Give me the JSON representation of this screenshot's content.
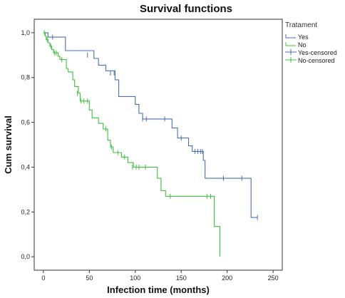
{
  "chart_data": {
    "type": "line",
    "title": "Survival functions",
    "xlabel": "Infection time (months)",
    "ylabel": "Cum survival",
    "xlim": [
      -10,
      260
    ],
    "ylim": [
      -0.06,
      1.06
    ],
    "x_ticks": [
      "0",
      "50",
      "100",
      "150",
      "200",
      "250"
    ],
    "x_tick_values": [
      0,
      50,
      100,
      150,
      200,
      250
    ],
    "y_ticks": [
      "0,0",
      "0,2",
      "0,4",
      "0,6",
      "0,8",
      "1,0"
    ],
    "y_tick_values": [
      0,
      0.2,
      0.4,
      0.6,
      0.8,
      1.0
    ],
    "grid": false,
    "legend": {
      "title": "Tratament",
      "placement": "top-right",
      "entries": [
        {
          "label": "Yes",
          "color": "#4a6fb3",
          "style": "line"
        },
        {
          "label": "No",
          "color": "#3fbf3f",
          "style": "line"
        },
        {
          "label": "Yes-censored",
          "color": "#4a6fb3",
          "style": "censor"
        },
        {
          "label": "No-censored",
          "color": "#3fbf3f",
          "style": "censor"
        }
      ]
    },
    "series": [
      {
        "name": "Yes",
        "color": "#4a6fb3",
        "steps": [
          [
            0,
            1.0
          ],
          [
            5,
            1.0
          ],
          [
            5,
            0.98
          ],
          [
            12,
            0.98
          ],
          [
            12,
            0.98
          ],
          [
            24,
            0.98
          ],
          [
            24,
            0.92
          ],
          [
            55,
            0.92
          ],
          [
            55,
            0.885
          ],
          [
            60,
            0.885
          ],
          [
            60,
            0.855
          ],
          [
            68,
            0.855
          ],
          [
            68,
            0.83
          ],
          [
            78,
            0.83
          ],
          [
            78,
            0.79
          ],
          [
            82,
            0.79
          ],
          [
            82,
            0.715
          ],
          [
            100,
            0.715
          ],
          [
            100,
            0.68
          ],
          [
            104,
            0.68
          ],
          [
            104,
            0.64
          ],
          [
            108,
            0.64
          ],
          [
            108,
            0.615
          ],
          [
            140,
            0.615
          ],
          [
            140,
            0.575
          ],
          [
            146,
            0.575
          ],
          [
            146,
            0.53
          ],
          [
            158,
            0.53
          ],
          [
            158,
            0.495
          ],
          [
            162,
            0.495
          ],
          [
            162,
            0.47
          ],
          [
            174,
            0.47
          ],
          [
            174,
            0.43
          ],
          [
            176,
            0.43
          ],
          [
            176,
            0.35
          ],
          [
            226,
            0.35
          ],
          [
            226,
            0.175
          ],
          [
            233,
            0.175
          ]
        ],
        "censored": [
          [
            10,
            0.98
          ],
          [
            48,
            0.9
          ],
          [
            73,
            0.82
          ],
          [
            77,
            0.82
          ],
          [
            108,
            0.615
          ],
          [
            112,
            0.615
          ],
          [
            132,
            0.615
          ],
          [
            150,
            0.53
          ],
          [
            165,
            0.47
          ],
          [
            168,
            0.47
          ],
          [
            171,
            0.47
          ],
          [
            173,
            0.47
          ],
          [
            196,
            0.35
          ],
          [
            216,
            0.35
          ],
          [
            233,
            0.175
          ]
        ]
      },
      {
        "name": "No",
        "color": "#3fbf3f",
        "steps": [
          [
            0,
            1.0
          ],
          [
            2,
            1.0
          ],
          [
            2,
            0.985
          ],
          [
            3,
            0.985
          ],
          [
            3,
            0.97
          ],
          [
            5,
            0.97
          ],
          [
            5,
            0.955
          ],
          [
            7,
            0.955
          ],
          [
            7,
            0.94
          ],
          [
            9,
            0.94
          ],
          [
            9,
            0.925
          ],
          [
            11,
            0.925
          ],
          [
            11,
            0.91
          ],
          [
            16,
            0.91
          ],
          [
            16,
            0.895
          ],
          [
            18,
            0.895
          ],
          [
            18,
            0.88
          ],
          [
            25,
            0.88
          ],
          [
            25,
            0.84
          ],
          [
            27,
            0.84
          ],
          [
            27,
            0.825
          ],
          [
            32,
            0.825
          ],
          [
            32,
            0.79
          ],
          [
            34,
            0.79
          ],
          [
            34,
            0.76
          ],
          [
            38,
            0.76
          ],
          [
            38,
            0.73
          ],
          [
            40,
            0.73
          ],
          [
            40,
            0.695
          ],
          [
            50,
            0.695
          ],
          [
            50,
            0.655
          ],
          [
            53,
            0.655
          ],
          [
            53,
            0.62
          ],
          [
            60,
            0.62
          ],
          [
            60,
            0.595
          ],
          [
            65,
            0.595
          ],
          [
            65,
            0.57
          ],
          [
            70,
            0.57
          ],
          [
            70,
            0.52
          ],
          [
            73,
            0.52
          ],
          [
            73,
            0.49
          ],
          [
            76,
            0.49
          ],
          [
            76,
            0.465
          ],
          [
            85,
            0.465
          ],
          [
            85,
            0.445
          ],
          [
            92,
            0.445
          ],
          [
            92,
            0.42
          ],
          [
            98,
            0.42
          ],
          [
            98,
            0.4
          ],
          [
            124,
            0.4
          ],
          [
            124,
            0.35
          ],
          [
            128,
            0.35
          ],
          [
            128,
            0.295
          ],
          [
            133,
            0.295
          ],
          [
            133,
            0.27
          ],
          [
            186,
            0.27
          ],
          [
            186,
            0.135
          ],
          [
            192,
            0.135
          ],
          [
            192,
            0.0
          ]
        ],
        "censored": [
          [
            1,
            1.0
          ],
          [
            4,
            0.97
          ],
          [
            8,
            0.94
          ],
          [
            12,
            0.91
          ],
          [
            14,
            0.91
          ],
          [
            20,
            0.88
          ],
          [
            37,
            0.73
          ],
          [
            41,
            0.695
          ],
          [
            44,
            0.695
          ],
          [
            48,
            0.695
          ],
          [
            68,
            0.57
          ],
          [
            74,
            0.49
          ],
          [
            81,
            0.465
          ],
          [
            88,
            0.445
          ],
          [
            97,
            0.4
          ],
          [
            101,
            0.4
          ],
          [
            104,
            0.4
          ],
          [
            111,
            0.4
          ],
          [
            138,
            0.27
          ],
          [
            178,
            0.27
          ],
          [
            182,
            0.27
          ]
        ]
      }
    ]
  }
}
